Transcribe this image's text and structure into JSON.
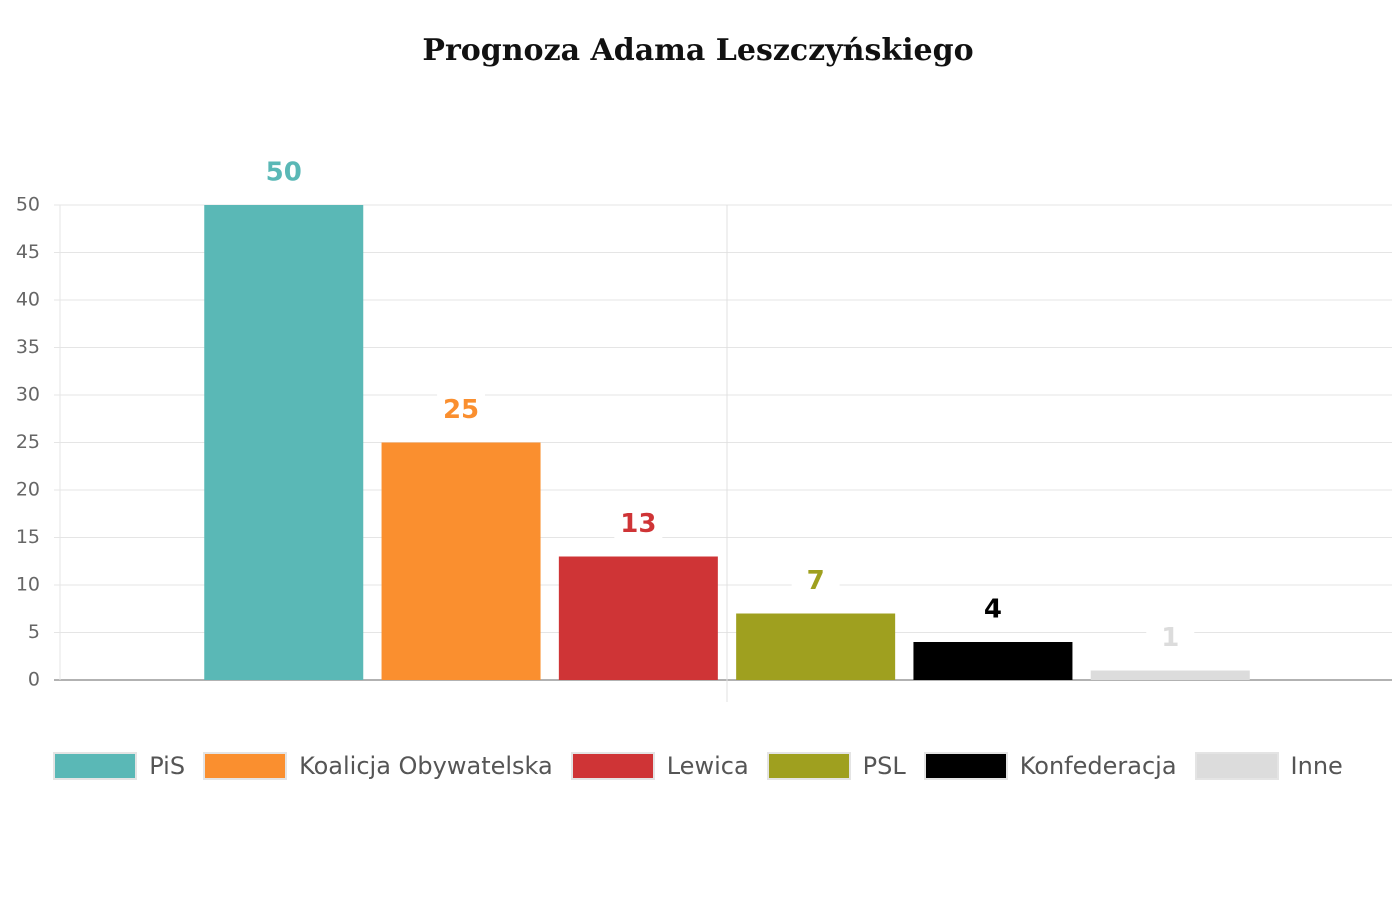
{
  "chart_data": {
    "type": "bar",
    "title": "Prognoza Adama Leszczyńskiego",
    "categories": [
      null
    ],
    "series": [
      {
        "name": "PiS",
        "color": "#5ab8b6",
        "values": [
          50
        ]
      },
      {
        "name": "Koalicja Obywatelska",
        "color": "#fa8f2f",
        "values": [
          25
        ]
      },
      {
        "name": "Lewica",
        "color": "#cf3436",
        "values": [
          13
        ]
      },
      {
        "name": "PSL",
        "color": "#9fa01f",
        "values": [
          7
        ]
      },
      {
        "name": "Konfederacja",
        "color": "#000000",
        "values": [
          4
        ]
      },
      {
        "name": "Inne",
        "color": "#dcdcdc",
        "values": [
          1
        ]
      }
    ],
    "ylim": [
      0,
      50
    ],
    "yticks": [
      0,
      5,
      10,
      15,
      20,
      25,
      30,
      35,
      40,
      45,
      50
    ],
    "grid": true,
    "legend": "bottom"
  }
}
